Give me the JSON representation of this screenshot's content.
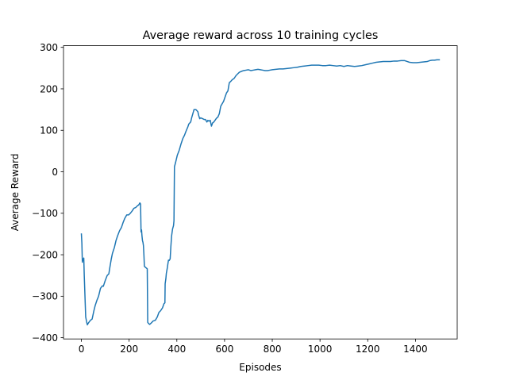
{
  "chart_data": {
    "type": "line",
    "title": "Average reward across 10 training cycles",
    "xlabel": "Episodes",
    "ylabel": "Average Reward",
    "xlim": [
      -75,
      1575
    ],
    "ylim": [
      -403,
      304
    ],
    "xticks": [
      0,
      200,
      400,
      600,
      800,
      1000,
      1200,
      1400
    ],
    "yticks": [
      -400,
      -300,
      -200,
      -100,
      0,
      100,
      200,
      300
    ],
    "grid": false,
    "legend": "none",
    "line_color": "#1f77b4",
    "series": [
      {
        "points": [
          [
            0,
            -150
          ],
          [
            2,
            -172
          ],
          [
            4,
            -218
          ],
          [
            6,
            -210
          ],
          [
            8,
            -214
          ],
          [
            10,
            -208
          ],
          [
            12,
            -250
          ],
          [
            15,
            -300
          ],
          [
            18,
            -350
          ],
          [
            22,
            -362
          ],
          [
            25,
            -369
          ],
          [
            30,
            -364
          ],
          [
            38,
            -358
          ],
          [
            45,
            -355
          ],
          [
            52,
            -336
          ],
          [
            58,
            -322
          ],
          [
            65,
            -310
          ],
          [
            72,
            -300
          ],
          [
            80,
            -281
          ],
          [
            88,
            -275
          ],
          [
            92,
            -276
          ],
          [
            100,
            -262
          ],
          [
            108,
            -250
          ],
          [
            115,
            -246
          ],
          [
            120,
            -228
          ],
          [
            125,
            -211
          ],
          [
            130,
            -197
          ],
          [
            138,
            -183
          ],
          [
            145,
            -166
          ],
          [
            152,
            -154
          ],
          [
            160,
            -142
          ],
          [
            168,
            -134
          ],
          [
            175,
            -122
          ],
          [
            182,
            -112
          ],
          [
            190,
            -104
          ],
          [
            198,
            -104
          ],
          [
            205,
            -100
          ],
          [
            212,
            -95
          ],
          [
            220,
            -88
          ],
          [
            228,
            -86
          ],
          [
            235,
            -82
          ],
          [
            240,
            -80
          ],
          [
            245,
            -75
          ],
          [
            248,
            -78
          ],
          [
            250,
            -145
          ],
          [
            252,
            -140
          ],
          [
            254,
            -155
          ],
          [
            256,
            -166
          ],
          [
            258,
            -170
          ],
          [
            260,
            -178
          ],
          [
            262,
            -200
          ],
          [
            264,
            -228
          ],
          [
            268,
            -230
          ],
          [
            270,
            -231
          ],
          [
            272,
            -232
          ],
          [
            274,
            -233
          ],
          [
            276,
            -234
          ],
          [
            278,
            -363
          ],
          [
            282,
            -366
          ],
          [
            286,
            -368
          ],
          [
            292,
            -365
          ],
          [
            300,
            -360
          ],
          [
            310,
            -358
          ],
          [
            318,
            -350
          ],
          [
            325,
            -339
          ],
          [
            332,
            -335
          ],
          [
            340,
            -328
          ],
          [
            346,
            -318
          ],
          [
            350,
            -316
          ],
          [
            351,
            -270
          ],
          [
            354,
            -258
          ],
          [
            356,
            -245
          ],
          [
            360,
            -232
          ],
          [
            363,
            -220
          ],
          [
            365,
            -213
          ],
          [
            368,
            -214
          ],
          [
            372,
            -210
          ],
          [
            375,
            -180
          ],
          [
            378,
            -155
          ],
          [
            382,
            -138
          ],
          [
            386,
            -130
          ],
          [
            388,
            -118
          ],
          [
            390,
            12
          ],
          [
            395,
            23
          ],
          [
            402,
            40
          ],
          [
            410,
            52
          ],
          [
            418,
            68
          ],
          [
            425,
            80
          ],
          [
            432,
            88
          ],
          [
            440,
            100
          ],
          [
            446,
            108
          ],
          [
            450,
            115
          ],
          [
            458,
            120
          ],
          [
            462,
            130
          ],
          [
            468,
            142
          ],
          [
            472,
            150
          ],
          [
            480,
            150
          ],
          [
            488,
            145
          ],
          [
            492,
            135
          ],
          [
            496,
            128
          ],
          [
            500,
            130
          ],
          [
            508,
            128
          ],
          [
            515,
            126
          ],
          [
            520,
            126
          ],
          [
            526,
            120
          ],
          [
            530,
            124
          ],
          [
            534,
            122
          ],
          [
            540,
            124
          ],
          [
            545,
            110
          ],
          [
            550,
            118
          ],
          [
            555,
            120
          ],
          [
            560,
            124
          ],
          [
            566,
            129
          ],
          [
            572,
            132
          ],
          [
            578,
            140
          ],
          [
            584,
            158
          ],
          [
            590,
            164
          ],
          [
            596,
            170
          ],
          [
            602,
            180
          ],
          [
            608,
            190
          ],
          [
            614,
            195
          ],
          [
            620,
            215
          ],
          [
            626,
            218
          ],
          [
            632,
            222
          ],
          [
            640,
            225
          ],
          [
            648,
            232
          ],
          [
            655,
            236
          ],
          [
            662,
            240
          ],
          [
            670,
            242
          ],
          [
            680,
            244
          ],
          [
            690,
            245
          ],
          [
            700,
            246
          ],
          [
            710,
            244
          ],
          [
            720,
            245
          ],
          [
            730,
            246
          ],
          [
            740,
            247
          ],
          [
            750,
            246
          ],
          [
            760,
            245
          ],
          [
            770,
            244
          ],
          [
            780,
            244
          ],
          [
            790,
            245
          ],
          [
            800,
            246
          ],
          [
            815,
            247
          ],
          [
            830,
            248
          ],
          [
            845,
            248
          ],
          [
            860,
            249
          ],
          [
            875,
            250
          ],
          [
            890,
            251
          ],
          [
            905,
            252
          ],
          [
            920,
            254
          ],
          [
            935,
            255
          ],
          [
            950,
            256
          ],
          [
            965,
            257
          ],
          [
            980,
            257
          ],
          [
            995,
            257
          ],
          [
            1010,
            256
          ],
          [
            1025,
            256
          ],
          [
            1040,
            257
          ],
          [
            1055,
            256
          ],
          [
            1070,
            255
          ],
          [
            1085,
            256
          ],
          [
            1100,
            254
          ],
          [
            1115,
            256
          ],
          [
            1130,
            255
          ],
          [
            1145,
            254
          ],
          [
            1160,
            255
          ],
          [
            1175,
            256
          ],
          [
            1190,
            258
          ],
          [
            1205,
            260
          ],
          [
            1220,
            262
          ],
          [
            1235,
            264
          ],
          [
            1250,
            265
          ],
          [
            1265,
            266
          ],
          [
            1280,
            266
          ],
          [
            1295,
            266
          ],
          [
            1310,
            267
          ],
          [
            1325,
            267
          ],
          [
            1340,
            268
          ],
          [
            1355,
            268
          ],
          [
            1365,
            266
          ],
          [
            1375,
            264
          ],
          [
            1390,
            263
          ],
          [
            1405,
            263
          ],
          [
            1420,
            264
          ],
          [
            1435,
            265
          ],
          [
            1450,
            266
          ],
          [
            1460,
            268
          ],
          [
            1470,
            269
          ],
          [
            1480,
            269
          ],
          [
            1490,
            270
          ],
          [
            1500,
            270
          ]
        ]
      }
    ]
  }
}
